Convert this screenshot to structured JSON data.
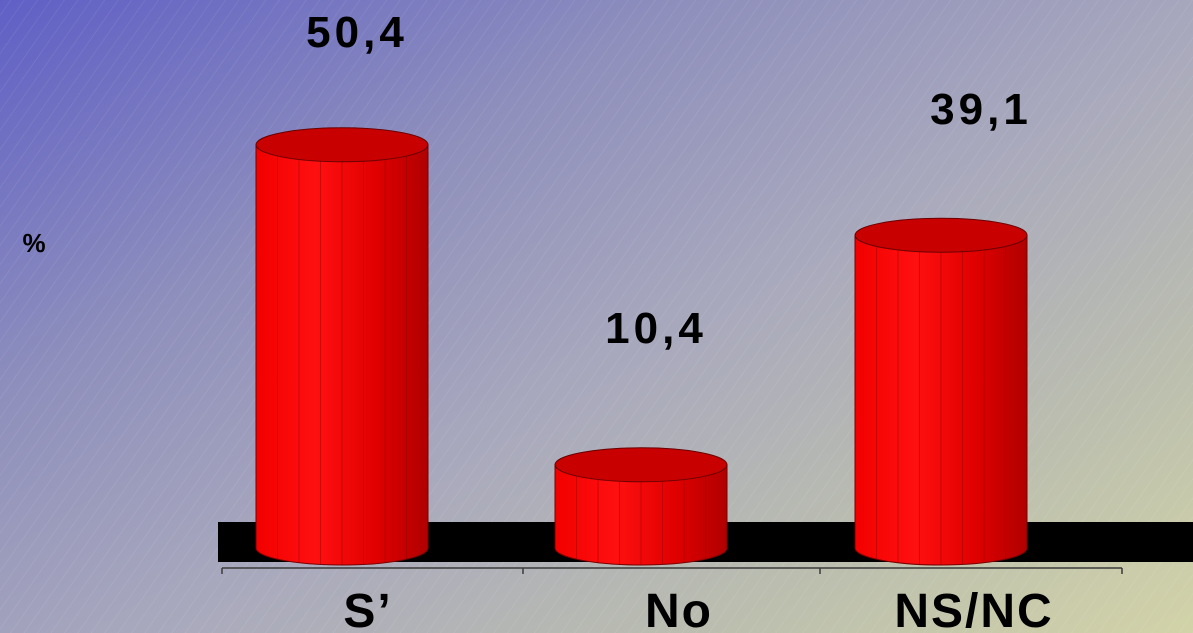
{
  "chart_data": {
    "type": "bar",
    "categories": [
      "S’",
      "No",
      "NS/NC"
    ],
    "values": [
      50.4,
      10.4,
      39.1
    ],
    "value_labels": [
      "50,4",
      "10,4",
      "39,1"
    ],
    "ylabel": "%",
    "bar_color": "#ff0000",
    "bar_top_color": "#c80000",
    "floor_color": "#000000",
    "grid": false,
    "legend": "none"
  }
}
